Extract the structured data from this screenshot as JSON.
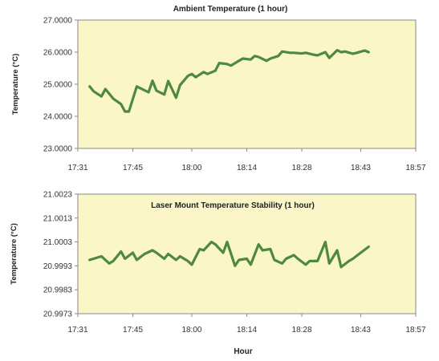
{
  "xlabel": "Hour",
  "chart_data": [
    {
      "type": "line",
      "title": "Ambient Temperature  (1 hour)",
      "ylabel": "Temperature (°C)",
      "ylim": [
        23.0,
        27.0
      ],
      "yticks": [
        "27.0000",
        "26.0000",
        "25.0000",
        "24.0000",
        "23.0000"
      ],
      "xlim": [
        "17:31",
        "18:57"
      ],
      "xticks": [
        "17:31",
        "17:45",
        "18:00",
        "18:14",
        "18:28",
        "18:43",
        "18:57"
      ],
      "plot_bg": "#faf6c8",
      "line_color": "#4e8a3e",
      "grid": false,
      "series": [
        {
          "x": [
            "17:34",
            "17:35",
            "17:37",
            "17:38",
            "17:40",
            "17:42",
            "17:43",
            "17:44",
            "17:46",
            "17:47",
            "17:49",
            "17:50",
            "17:51",
            "17:53",
            "17:54",
            "17:56",
            "17:57",
            "17:59",
            "18:00",
            "18:01",
            "18:03",
            "18:04",
            "18:06",
            "18:07",
            "18:09",
            "18:10",
            "18:12",
            "18:13",
            "18:15",
            "18:16",
            "18:17",
            "18:19",
            "18:20",
            "18:22",
            "18:23",
            "18:25",
            "18:26",
            "18:28",
            "18:29",
            "18:31",
            "18:32",
            "18:34",
            "18:35",
            "18:37",
            "18:38",
            "18:39",
            "18:41",
            "18:42",
            "18:44",
            "18:45"
          ],
          "values": [
            24.93,
            24.78,
            24.62,
            24.85,
            24.55,
            24.38,
            24.15,
            24.15,
            24.93,
            24.87,
            24.75,
            25.11,
            24.8,
            24.68,
            25.1,
            24.58,
            24.97,
            25.26,
            25.32,
            25.22,
            25.38,
            25.32,
            25.42,
            25.66,
            25.63,
            25.58,
            25.73,
            25.8,
            25.77,
            25.88,
            25.85,
            25.73,
            25.8,
            25.88,
            26.02,
            25.98,
            25.98,
            25.96,
            25.98,
            25.92,
            25.9,
            26.0,
            25.82,
            26.06,
            26.0,
            26.02,
            25.95,
            25.98,
            26.05,
            26.0
          ]
        }
      ]
    },
    {
      "type": "line",
      "title": "Laser Mount Temperature Stability  (1 hour)",
      "ylabel": "Temperature (°C)",
      "ylim": [
        20.9973,
        21.0023
      ],
      "yticks": [
        "21.0023",
        "21.0013",
        "21.0003",
        "20.9993",
        "20.9983",
        "20.9973"
      ],
      "xlim": [
        "17:31",
        "18:57"
      ],
      "xticks": [
        "17:31",
        "17:45",
        "18:00",
        "18:14",
        "18:28",
        "18:43",
        "18:57"
      ],
      "plot_bg": "#faf6c8",
      "line_color": "#4e8a3e",
      "grid": false,
      "series": [
        {
          "x": [
            "17:34",
            "17:36",
            "17:37",
            "17:39",
            "17:40",
            "17:42",
            "17:43",
            "17:45",
            "17:46",
            "17:48",
            "17:50",
            "17:51",
            "17:53",
            "17:54",
            "17:56",
            "17:57",
            "17:59",
            "18:00",
            "18:02",
            "18:03",
            "18:05",
            "18:06",
            "18:08",
            "18:09",
            "18:11",
            "18:12",
            "18:14",
            "18:15",
            "18:17",
            "18:18",
            "18:20",
            "18:21",
            "18:23",
            "18:24",
            "18:26",
            "18:27",
            "18:29",
            "18:30",
            "18:32",
            "18:34",
            "18:35",
            "18:37",
            "18:38",
            "18:40",
            "18:41",
            "18:43",
            "18:45"
          ],
          "values": [
            20.99955,
            20.99965,
            20.9997,
            20.9994,
            20.9995,
            20.9999,
            20.9996,
            20.99985,
            20.99955,
            20.9998,
            20.99995,
            20.99985,
            20.9996,
            20.9998,
            20.99955,
            20.9997,
            20.9995,
            20.99935,
            21.0,
            20.99995,
            21.0003,
            21.0002,
            20.99985,
            21.0003,
            20.9993,
            20.99955,
            20.9996,
            20.99935,
            21.0002,
            20.99995,
            21.0,
            20.99955,
            20.9994,
            20.9996,
            20.99975,
            20.9996,
            20.99935,
            20.9995,
            20.9995,
            21.0003,
            20.9994,
            20.99995,
            20.99925,
            20.9995,
            20.9996,
            20.99985,
            21.0001
          ]
        }
      ]
    }
  ]
}
